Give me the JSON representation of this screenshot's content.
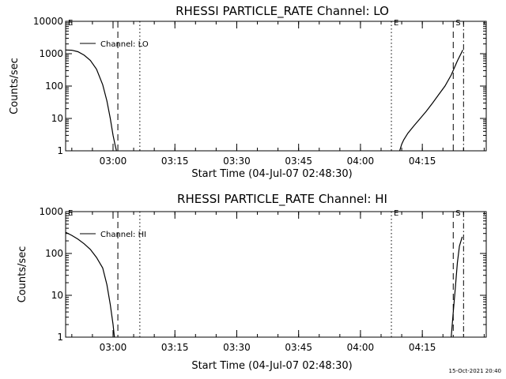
{
  "chart_data": [
    {
      "type": "line",
      "title": "RHESSI PARTICLE_RATE Channel: LO",
      "xlabel": "Start Time (04-Jul-07 02:48:30)",
      "ylabel": "Counts/sec",
      "yscale": "log",
      "ylim": [
        1,
        10000
      ],
      "xlim": [
        "02:48:30",
        "04:30:30"
      ],
      "x_ticks": [
        "03:00",
        "03:15",
        "03:30",
        "03:45",
        "04:00",
        "04:15"
      ],
      "y_ticks": [
        "1",
        "10",
        "100",
        "1000",
        "10000"
      ],
      "legend": {
        "entries": [
          "Channel: LO"
        ],
        "placement": "top-left"
      },
      "markers": [
        {
          "label": "E",
          "time": "02:48:30",
          "style": "none"
        },
        {
          "label": "",
          "time": "03:01:10",
          "style": "dashed"
        },
        {
          "label": "",
          "time": "03:06:30",
          "style": "dotted"
        },
        {
          "label": "E",
          "time": "04:07:30",
          "style": "dotted"
        },
        {
          "label": "S",
          "time": "04:22:30",
          "style": "dashed"
        },
        {
          "label": "",
          "time": "04:25:00",
          "style": "dashdot"
        }
      ],
      "series": [
        {
          "name": "Channel: LO",
          "segments": [
            {
              "x": [
                "02:48:30",
                "02:50:00",
                "02:51:30",
                "02:53:00",
                "02:54:30",
                "02:56:00",
                "02:57:30",
                "02:58:30",
                "02:59:20",
                "03:00:00",
                "03:00:30",
                "03:00:50"
              ],
              "y": [
                1300,
                1280,
                1150,
                900,
                620,
                330,
                110,
                35,
                10,
                3,
                1.5,
                1
              ]
            },
            {
              "x": [
                "04:09:30",
                "04:10:00",
                "04:10:30",
                "04:11:30",
                "04:13:00",
                "04:14:30",
                "04:16:00",
                "04:17:30",
                "04:19:00",
                "04:20:30",
                "04:22:00",
                "04:23:30",
                "04:24:50"
              ],
              "y": [
                1,
                1.6,
                2.2,
                3.5,
                6,
                10,
                17,
                30,
                55,
                100,
                220,
                600,
                1300
              ]
            }
          ]
        }
      ]
    },
    {
      "type": "line",
      "title": "RHESSI PARTICLE_RATE Channel: HI",
      "xlabel": "Start Time (04-Jul-07 02:48:30)",
      "ylabel": "Counts/sec",
      "yscale": "log",
      "ylim": [
        1,
        1000
      ],
      "xlim": [
        "02:48:30",
        "04:30:30"
      ],
      "x_ticks": [
        "03:00",
        "03:15",
        "03:30",
        "03:45",
        "04:00",
        "04:15"
      ],
      "y_ticks": [
        "1",
        "10",
        "100",
        "1000"
      ],
      "legend": {
        "entries": [
          "Channel: HI"
        ],
        "placement": "top-left"
      },
      "markers": [
        {
          "label": "E",
          "time": "02:48:30",
          "style": "none"
        },
        {
          "label": "",
          "time": "03:01:10",
          "style": "dashed"
        },
        {
          "label": "",
          "time": "03:06:30",
          "style": "dotted"
        },
        {
          "label": "E",
          "time": "04:07:30",
          "style": "dotted"
        },
        {
          "label": "S",
          "time": "04:22:30",
          "style": "dashed"
        },
        {
          "label": "",
          "time": "04:25:00",
          "style": "dashdot"
        }
      ],
      "series": [
        {
          "name": "Channel: HI",
          "segments": [
            {
              "x": [
                "02:48:30",
                "02:50:00",
                "02:51:30",
                "02:53:00",
                "02:54:30",
                "02:56:00",
                "02:57:30",
                "02:58:30",
                "02:59:20",
                "03:00:00",
                "03:00:20"
              ],
              "y": [
                320,
                270,
                220,
                170,
                125,
                80,
                45,
                18,
                6,
                2,
                1
              ]
            },
            {
              "x": [
                "04:22:00",
                "04:22:30",
                "04:23:00",
                "04:23:30",
                "04:24:00",
                "04:24:40"
              ],
              "y": [
                1,
                4,
                15,
                60,
                150,
                250
              ]
            }
          ]
        }
      ]
    }
  ],
  "timestamp": "15-Oct-2021 20:40"
}
